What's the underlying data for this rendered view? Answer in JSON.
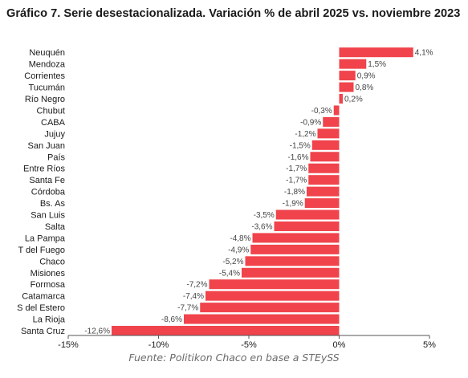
{
  "chart_title": "Gráfico 7. Serie desestacionalizada. Variación % de abril 2025 vs. noviembre 2023",
  "source": "Fuente: Politikon Chaco en base a STEySS",
  "colors": {
    "bar": "#f0434b",
    "axis": "#555555",
    "grid": "#dddddd"
  },
  "chart_data": {
    "type": "bar",
    "orientation": "horizontal",
    "title": "Gráfico 7. Serie desestacionalizada. Variación % de abril 2025 vs. noviembre 2023",
    "categories": [
      "Neuquén",
      "Mendoza",
      "Corrientes",
      "Tucumán",
      "Río Negro",
      "Chubut",
      "CABA",
      "Jujuy",
      "San Juan",
      "País",
      "Entre Ríos",
      "Santa Fe",
      "Córdoba",
      "Bs. As",
      "San Luis",
      "Salta",
      "La Pampa",
      "T del Fuego",
      "Chaco",
      "Misiones",
      "Formosa",
      "Catamarca",
      "S del Estero",
      "La Rioja",
      "Santa Cruz"
    ],
    "values": [
      4.1,
      1.5,
      0.9,
      0.8,
      0.2,
      -0.3,
      -0.9,
      -1.2,
      -1.5,
      -1.6,
      -1.7,
      -1.7,
      -1.8,
      -1.9,
      -3.5,
      -3.6,
      -4.8,
      -4.9,
      -5.2,
      -5.4,
      -7.2,
      -7.4,
      -7.7,
      -8.6,
      -12.6
    ],
    "value_labels": [
      "4,1%",
      "1,5%",
      "0,9%",
      "0,8%",
      "0,2%",
      "-0,3%",
      "-0,9%",
      "-1,2%",
      "-1,5%",
      "-1,6%",
      "-1,7%",
      "-1,7%",
      "-1,8%",
      "-1,9%",
      "-3,5%",
      "-3,6%",
      "-4,8%",
      "-4,9%",
      "-5,2%",
      "-5,4%",
      "-7,2%",
      "-7,4%",
      "-7,7%",
      "-8,6%",
      "-12,6%"
    ],
    "xlim": [
      -15,
      5
    ],
    "xticks": [
      -15,
      -10,
      -5,
      0,
      5
    ],
    "xtick_labels": [
      "-15%",
      "-10%",
      "-5%",
      "0%",
      "5%"
    ],
    "xlabel": "",
    "ylabel": "",
    "grid": false,
    "legend": "none"
  }
}
